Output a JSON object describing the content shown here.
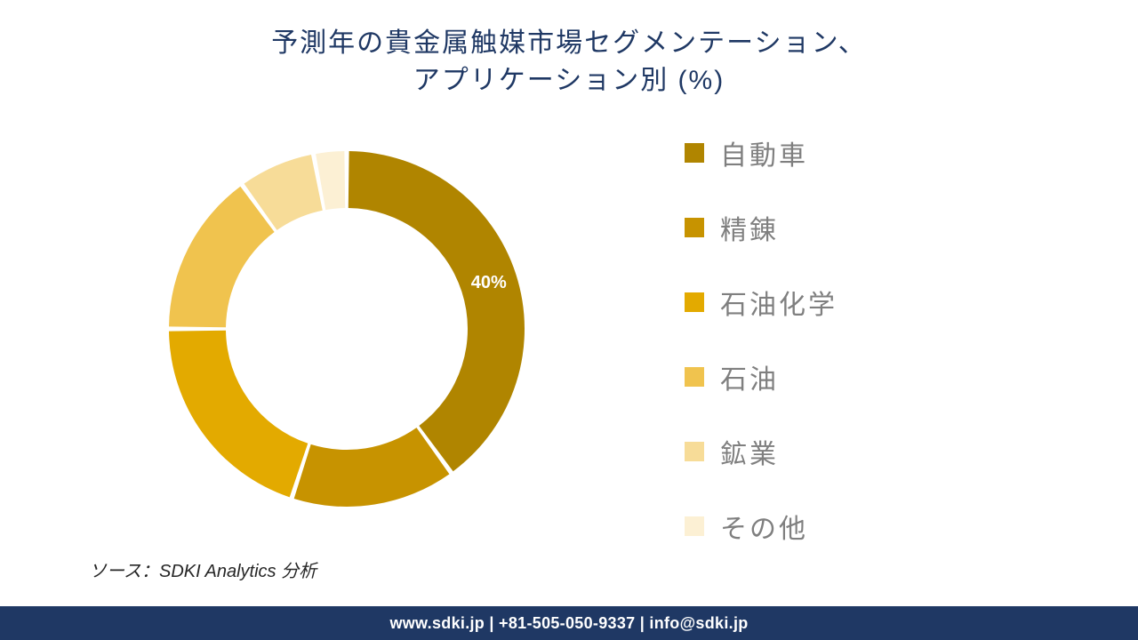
{
  "title": {
    "line1": "予測年の貴金属触媒市場セグメンテーション、",
    "line2": "アプリケーション別 (%)",
    "color": "#1f3864",
    "fontsize": 30
  },
  "chart": {
    "type": "donut",
    "inner_radius_pct": 68,
    "outer_radius_pct": 100,
    "gap_deg": 1.5,
    "background_color": "#ffffff",
    "slices": [
      {
        "label": "自動車",
        "value": 40,
        "color": "#b08500",
        "show_label": true,
        "label_text": "40%"
      },
      {
        "label": "精錬",
        "value": 15,
        "color": "#c79300",
        "show_label": false
      },
      {
        "label": "石油化学",
        "value": 20,
        "color": "#e3aa00",
        "show_label": false
      },
      {
        "label": "石油",
        "value": 15,
        "color": "#f0c34e",
        "show_label": false
      },
      {
        "label": "鉱業",
        "value": 7,
        "color": "#f7dc98",
        "show_label": false
      },
      {
        "label": "その他",
        "value": 3,
        "color": "#fcf0d4",
        "show_label": false
      }
    ],
    "label_fontsize": 20,
    "label_color": "#ffffff"
  },
  "legend": {
    "fontsize": 30,
    "label_color": "#7f7f7f",
    "swatch_size": 22,
    "items": [
      {
        "label": "自動車",
        "color": "#b08500"
      },
      {
        "label": "精錬",
        "color": "#c79300"
      },
      {
        "label": "石油化学",
        "color": "#e3aa00"
      },
      {
        "label": "石油",
        "color": "#f0c34e"
      },
      {
        "label": "鉱業",
        "color": "#f7dc98"
      },
      {
        "label": "その他",
        "color": "#fcf0d4"
      }
    ]
  },
  "source": {
    "text": "ソース：SDKI Analytics 分析",
    "fontsize": 20,
    "color": "#262626"
  },
  "footer": {
    "text": "www.sdki.jp | +81-505-050-9337 | info@sdki.jp",
    "bar_color": "#1f3864",
    "text_color": "#ffffff",
    "fontsize": 18
  }
}
